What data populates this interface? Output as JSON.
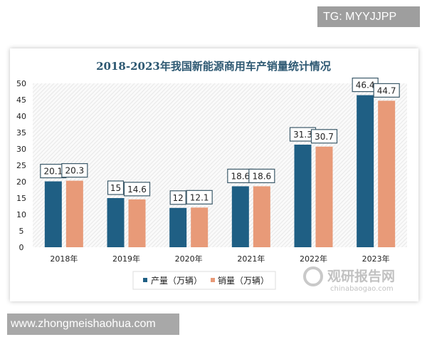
{
  "watermark_top": "TG: MYYJJPP",
  "watermark_bottom": "www.zhongmeishaohua.com",
  "logo": {
    "cn": "观研报告网",
    "en": "chinabaogao.com"
  },
  "chart_data": {
    "type": "bar",
    "title": "2018-2023年我国新能源商用车产销量统计情况",
    "categories": [
      "2018年",
      "2019年",
      "2020年",
      "2021年",
      "2022年",
      "2023年"
    ],
    "series": [
      {
        "name": "产量（万辆）",
        "color": "#1f5f84",
        "values": [
          20.1,
          15,
          12,
          18.6,
          31.3,
          46.4
        ]
      },
      {
        "name": "销量（万辆）",
        "color": "#e89a78",
        "values": [
          20.3,
          14.6,
          12.1,
          18.6,
          30.7,
          44.7
        ]
      }
    ],
    "ylim": [
      0,
      50
    ],
    "yticks": [
      0,
      5,
      10,
      15,
      20,
      25,
      30,
      35,
      40,
      45,
      50
    ],
    "grid": false,
    "legend": "bottom",
    "data_labels": true
  }
}
